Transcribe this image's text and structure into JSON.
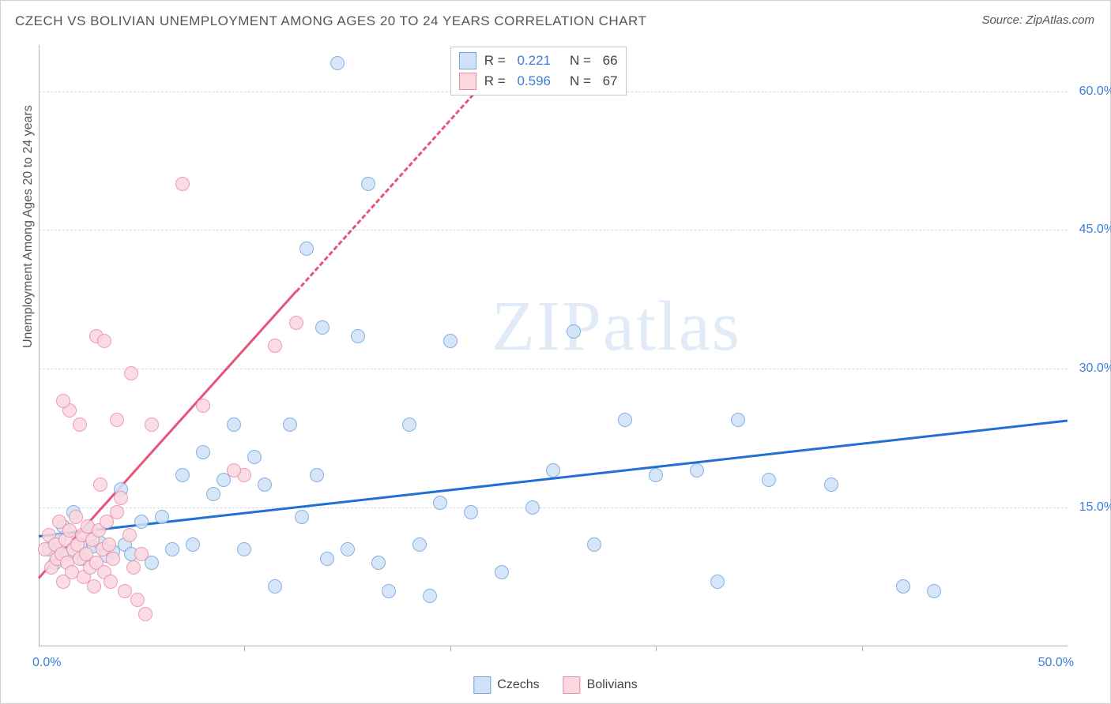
{
  "title": "CZECH VS BOLIVIAN UNEMPLOYMENT AMONG AGES 20 TO 24 YEARS CORRELATION CHART",
  "source": "Source: ZipAtlas.com",
  "y_axis_title": "Unemployment Among Ages 20 to 24 years",
  "watermark": "ZIPatlas",
  "chart": {
    "type": "scatter-with-regression",
    "xlim": [
      0,
      50
    ],
    "ylim": [
      0,
      65
    ],
    "xticks": [
      0,
      10,
      20,
      30,
      40,
      50
    ],
    "xtick_labels": [
      "0.0%",
      "",
      "",
      "",
      "",
      "50.0%"
    ],
    "yticks": [
      15,
      30,
      45,
      60
    ],
    "ytick_labels": [
      "15.0%",
      "30.0%",
      "45.0%",
      "60.0%"
    ],
    "grid_color": "#d8d8d8",
    "background": "#ffffff",
    "marker_size": 18,
    "marker_stroke_width": 1.5,
    "series": [
      {
        "name": "Czechs",
        "label": "Czechs",
        "fill": "#cfe2f7",
        "stroke": "#6fa3de",
        "line_color": "#1f6fd4",
        "line_width": 3,
        "R": 0.221,
        "N": 66,
        "regression": {
          "x1": 0,
          "y1": 12.0,
          "x2": 50,
          "y2": 24.5,
          "dash_after_x": null
        },
        "points": [
          [
            0.5,
            10.5
          ],
          [
            0.8,
            9.0
          ],
          [
            1.0,
            11.5
          ],
          [
            1.2,
            13.0
          ],
          [
            1.4,
            10.0
          ],
          [
            1.7,
            14.5
          ],
          [
            2.0,
            11.0
          ],
          [
            2.2,
            9.5
          ],
          [
            2.5,
            12.5
          ],
          [
            2.7,
            10.8
          ],
          [
            3.0,
            11.2
          ],
          [
            3.3,
            9.8
          ],
          [
            3.6,
            10.2
          ],
          [
            4.0,
            17.0
          ],
          [
            4.2,
            11.0
          ],
          [
            4.5,
            10.0
          ],
          [
            5.0,
            13.5
          ],
          [
            5.5,
            9.0
          ],
          [
            6.0,
            14.0
          ],
          [
            6.5,
            10.5
          ],
          [
            7.0,
            18.5
          ],
          [
            7.5,
            11.0
          ],
          [
            8.0,
            21.0
          ],
          [
            8.5,
            16.5
          ],
          [
            9.0,
            18.0
          ],
          [
            9.5,
            24.0
          ],
          [
            10.0,
            10.5
          ],
          [
            10.5,
            20.5
          ],
          [
            11.0,
            17.5
          ],
          [
            11.5,
            6.5
          ],
          [
            12.2,
            24.0
          ],
          [
            12.8,
            14.0
          ],
          [
            13.0,
            43.0
          ],
          [
            13.5,
            18.5
          ],
          [
            13.8,
            34.5
          ],
          [
            14.0,
            9.5
          ],
          [
            14.5,
            63.0
          ],
          [
            15.0,
            10.5
          ],
          [
            15.5,
            33.5
          ],
          [
            16.0,
            50.0
          ],
          [
            16.5,
            9.0
          ],
          [
            17.0,
            6.0
          ],
          [
            18.0,
            24.0
          ],
          [
            18.5,
            11.0
          ],
          [
            19.0,
            5.5
          ],
          [
            19.5,
            15.5
          ],
          [
            20.0,
            33.0
          ],
          [
            21.0,
            14.5
          ],
          [
            22.5,
            8.0
          ],
          [
            24.0,
            15.0
          ],
          [
            25.0,
            19.0
          ],
          [
            26.0,
            34.0
          ],
          [
            27.0,
            11.0
          ],
          [
            28.5,
            24.5
          ],
          [
            30.0,
            18.5
          ],
          [
            32.0,
            19.0
          ],
          [
            33.0,
            7.0
          ],
          [
            34.0,
            24.5
          ],
          [
            35.5,
            18.0
          ],
          [
            38.5,
            17.5
          ],
          [
            42.0,
            6.5
          ],
          [
            43.5,
            6.0
          ]
        ]
      },
      {
        "name": "Bolivians",
        "label": "Bolivians",
        "fill": "#fbd7e0",
        "stroke": "#e88ba5",
        "line_color": "#e6547a",
        "line_width": 3,
        "R": 0.596,
        "N": 67,
        "regression": {
          "x1": 0,
          "y1": 7.5,
          "x2": 22,
          "y2": 62.0,
          "dash_after_x": 12.5
        },
        "points": [
          [
            0.3,
            10.5
          ],
          [
            0.5,
            12.0
          ],
          [
            0.6,
            8.5
          ],
          [
            0.8,
            11.0
          ],
          [
            0.9,
            9.5
          ],
          [
            1.0,
            13.5
          ],
          [
            1.1,
            10.0
          ],
          [
            1.2,
            7.0
          ],
          [
            1.3,
            11.5
          ],
          [
            1.4,
            9.0
          ],
          [
            1.5,
            12.5
          ],
          [
            1.6,
            8.0
          ],
          [
            1.7,
            10.5
          ],
          [
            1.8,
            14.0
          ],
          [
            1.9,
            11.0
          ],
          [
            2.0,
            9.5
          ],
          [
            2.1,
            12.0
          ],
          [
            2.2,
            7.5
          ],
          [
            2.3,
            10.0
          ],
          [
            2.4,
            13.0
          ],
          [
            2.5,
            8.5
          ],
          [
            2.6,
            11.5
          ],
          [
            2.7,
            6.5
          ],
          [
            2.8,
            9.0
          ],
          [
            2.9,
            12.5
          ],
          [
            3.0,
            17.5
          ],
          [
            3.1,
            10.5
          ],
          [
            3.2,
            8.0
          ],
          [
            3.3,
            13.5
          ],
          [
            3.4,
            11.0
          ],
          [
            3.5,
            7.0
          ],
          [
            3.6,
            9.5
          ],
          [
            3.8,
            14.5
          ],
          [
            4.0,
            16.0
          ],
          [
            4.2,
            6.0
          ],
          [
            4.4,
            12.0
          ],
          [
            4.6,
            8.5
          ],
          [
            4.8,
            5.0
          ],
          [
            5.0,
            10.0
          ],
          [
            5.2,
            3.5
          ],
          [
            1.5,
            25.5
          ],
          [
            2.8,
            33.5
          ],
          [
            1.2,
            26.5
          ],
          [
            2.0,
            24.0
          ],
          [
            3.2,
            33.0
          ],
          [
            3.8,
            24.5
          ],
          [
            4.5,
            29.5
          ],
          [
            5.5,
            24.0
          ],
          [
            8.0,
            26.0
          ],
          [
            7.0,
            50.0
          ],
          [
            10.0,
            18.5
          ],
          [
            11.5,
            32.5
          ],
          [
            12.5,
            35.0
          ],
          [
            9.5,
            19.0
          ]
        ]
      }
    ]
  },
  "stats_box": {
    "rows": [
      {
        "swatch_fill": "#cfe2f7",
        "swatch_stroke": "#6fa3de",
        "R": "0.221",
        "N": "66"
      },
      {
        "swatch_fill": "#fbd7e0",
        "swatch_stroke": "#e88ba5",
        "R": "0.596",
        "N": "67"
      }
    ]
  },
  "legend": [
    {
      "swatch_fill": "#cfe2f7",
      "swatch_stroke": "#6fa3de",
      "label": "Czechs"
    },
    {
      "swatch_fill": "#fbd7e0",
      "swatch_stroke": "#e88ba5",
      "label": "Bolivians"
    }
  ]
}
